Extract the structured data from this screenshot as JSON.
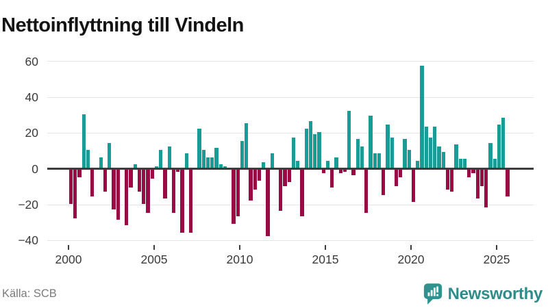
{
  "title": "Nettoinflyttning till Vindeln",
  "source": {
    "label": "Källa: SCB"
  },
  "branding": {
    "name": "Newsworthy",
    "icon": "newsworthy-speech-bubble-chart-icon",
    "color": "#2e8c8a"
  },
  "axes": {
    "y_ticks": [
      60,
      40,
      20,
      0,
      -20,
      -40
    ],
    "x_ticks": [
      2000,
      2005,
      2010,
      2015,
      2020,
      2025
    ]
  },
  "colors": {
    "positive": "#199c95",
    "negative": "#9a0b45",
    "zero_line": "#3c3c3c",
    "grid": "#e4e4e4",
    "axis_text": "#3a3a3a",
    "source_text": "#7a7a7a"
  },
  "chart_data": {
    "type": "bar",
    "title": "Nettoinflyttning till Vindeln",
    "x_unit": "quarter",
    "start": "2000 Q1",
    "end": "2025 Q3",
    "ylim": [
      -42,
      62
    ],
    "grid": true,
    "legend": "none",
    "positive_color": "#199c95",
    "negative_color": "#9a0b45",
    "values_by_year": [
      {
        "year": 2000,
        "q": [
          -19,
          -27,
          -4,
          30
        ]
      },
      {
        "year": 2001,
        "q": [
          10,
          -15,
          0,
          6
        ]
      },
      {
        "year": 2002,
        "q": [
          -12,
          14,
          -22,
          -28
        ]
      },
      {
        "year": 2003,
        "q": [
          0,
          -31,
          -10,
          2
        ]
      },
      {
        "year": 2004,
        "q": [
          -12,
          -19,
          -24,
          -5
        ]
      },
      {
        "year": 2005,
        "q": [
          1,
          10,
          -16,
          12
        ]
      },
      {
        "year": 2006,
        "q": [
          -24,
          -1,
          -35,
          8
        ]
      },
      {
        "year": 2007,
        "q": [
          -35,
          0,
          22,
          10
        ]
      },
      {
        "year": 2008,
        "q": [
          6,
          6,
          11,
          2
        ]
      },
      {
        "year": 2009,
        "q": [
          1,
          0,
          -30,
          -26
        ]
      },
      {
        "year": 2010,
        "q": [
          15,
          25,
          -17,
          -11
        ]
      },
      {
        "year": 2011,
        "q": [
          -6,
          3,
          -37,
          8
        ]
      },
      {
        "year": 2012,
        "q": [
          0,
          -23,
          -9,
          -7
        ]
      },
      {
        "year": 2013,
        "q": [
          17,
          4,
          -26,
          22
        ]
      },
      {
        "year": 2014,
        "q": [
          26,
          19,
          20,
          -2
        ]
      },
      {
        "year": 2015,
        "q": [
          4,
          -10,
          6,
          -2
        ]
      },
      {
        "year": 2016,
        "q": [
          -1,
          32,
          -3,
          16
        ]
      },
      {
        "year": 2017,
        "q": [
          12,
          -24,
          29,
          8
        ]
      },
      {
        "year": 2018,
        "q": [
          8,
          -14,
          24,
          17
        ]
      },
      {
        "year": 2019,
        "q": [
          -9,
          -4,
          16,
          10
        ]
      },
      {
        "year": 2020,
        "q": [
          -18,
          4,
          57,
          23
        ]
      },
      {
        "year": 2021,
        "q": [
          17,
          23,
          12,
          9
        ]
      },
      {
        "year": 2022,
        "q": [
          -11,
          -12,
          13,
          5
        ]
      },
      {
        "year": 2023,
        "q": [
          5,
          -4,
          -2,
          -16
        ]
      },
      {
        "year": 2024,
        "q": [
          -9,
          -21,
          14,
          5
        ]
      },
      {
        "year": 2025,
        "q": [
          24,
          28,
          -15
        ]
      }
    ]
  }
}
